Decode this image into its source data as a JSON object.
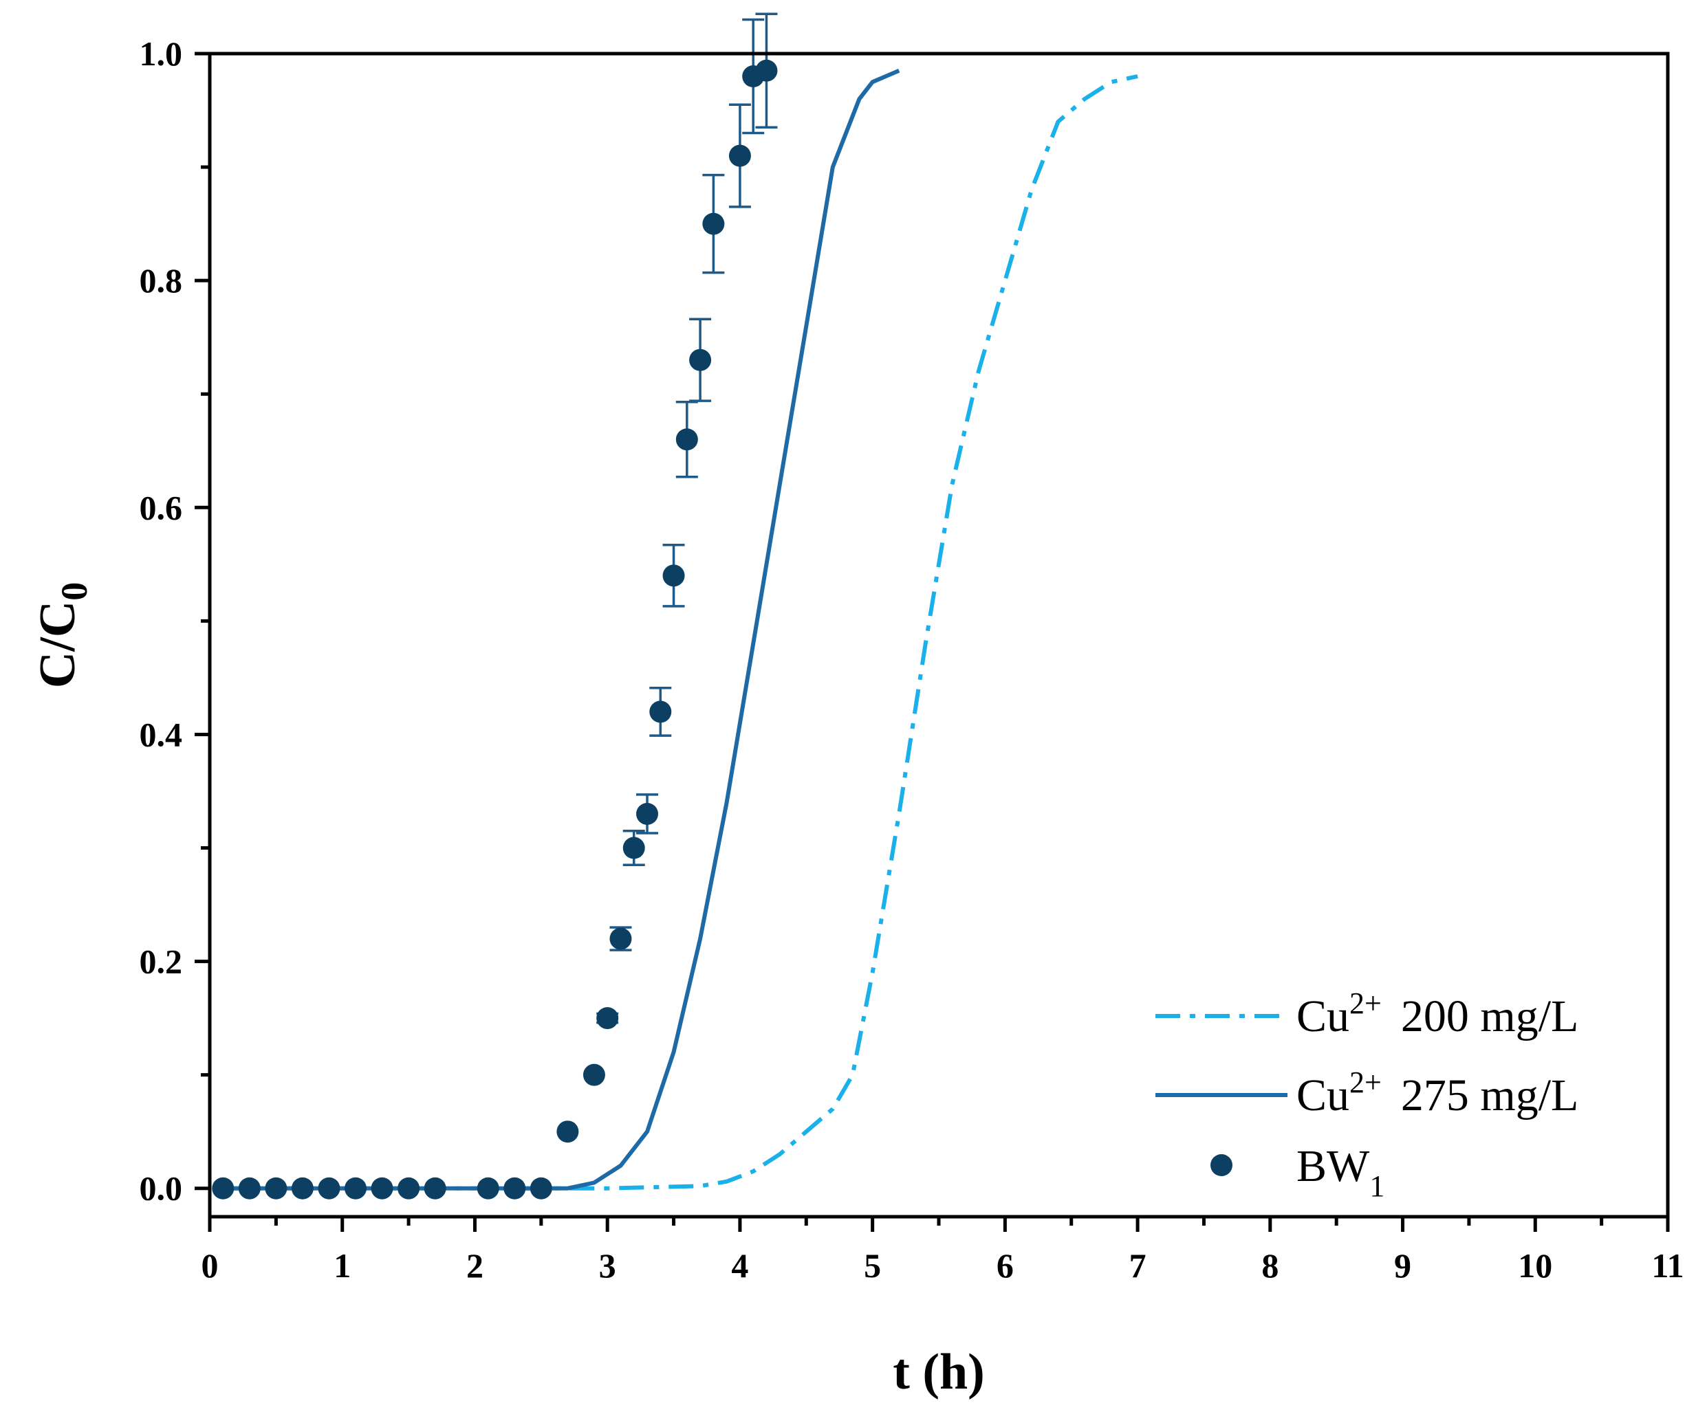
{
  "chart_data": {
    "type": "scatter",
    "title": "",
    "xlabel": "t (h)",
    "ylabel": {
      "base": "C/C",
      "sub": "0"
    },
    "xlim": [
      0,
      11
    ],
    "ylim": [
      0,
      1.0
    ],
    "x_ticks": [
      0,
      1,
      2,
      3,
      4,
      5,
      6,
      7,
      8,
      9,
      10,
      11
    ],
    "x_tick_labels": [
      "0",
      "1",
      "2",
      "3",
      "4",
      "5",
      "6",
      "7",
      "8",
      "9",
      "10",
      "11"
    ],
    "y_ticks": [
      0,
      0.2,
      0.4,
      0.6,
      0.8,
      1.0
    ],
    "y_tick_labels": [
      "0.0",
      "0.2",
      "0.4",
      "0.6",
      "0.8",
      "1.0"
    ],
    "grid": false,
    "legend_position": "bottom-right",
    "series": [
      {
        "name": "Cu2+ 200 mg/L",
        "legend": {
          "ion": "Cu",
          "sup": "2+",
          "conc": "200 mg/L"
        },
        "kind": "line",
        "style": "dash-dot",
        "color": "#1ab0ea",
        "x": [
          0.1,
          2.5,
          3.0,
          3.7,
          3.9,
          4.1,
          4.3,
          4.5,
          4.7,
          4.85,
          5.0,
          5.2,
          5.4,
          5.6,
          5.8,
          6.0,
          6.2,
          6.4,
          6.6,
          6.8,
          7.0
        ],
        "y": [
          0,
          0,
          0,
          0.002,
          0.006,
          0.015,
          0.03,
          0.05,
          0.07,
          0.1,
          0.19,
          0.33,
          0.48,
          0.62,
          0.72,
          0.8,
          0.88,
          0.94,
          0.96,
          0.975,
          0.98
        ]
      },
      {
        "name": "Cu2+ 275 mg/L",
        "legend": {
          "ion": "Cu",
          "sup": "2+",
          "conc": "275 mg/L"
        },
        "kind": "line",
        "style": "solid",
        "color": "#1d6aa6",
        "x": [
          0.1,
          2.5,
          2.7,
          2.9,
          3.1,
          3.3,
          3.5,
          3.7,
          3.9,
          4.1,
          4.3,
          4.5,
          4.7,
          4.9,
          5.0,
          5.1,
          5.2
        ],
        "y": [
          0,
          0,
          0.0,
          0.005,
          0.02,
          0.05,
          0.12,
          0.22,
          0.34,
          0.48,
          0.62,
          0.76,
          0.9,
          0.96,
          0.975,
          0.98,
          0.985
        ]
      },
      {
        "name": "BW1",
        "legend": {
          "label": "BW",
          "sub": "1"
        },
        "kind": "scatter",
        "marker": "circle",
        "color": "#0d3f62",
        "x": [
          0.1,
          0.3,
          0.5,
          0.7,
          0.9,
          1.1,
          1.3,
          1.5,
          1.7,
          2.1,
          2.3,
          2.5,
          2.7,
          2.9,
          3.0,
          3.1,
          3.2,
          3.3,
          3.4,
          3.5,
          3.6,
          3.7,
          3.8,
          4.0,
          4.1,
          4.2
        ],
        "y": [
          0,
          0,
          0,
          0,
          0,
          0,
          0,
          0,
          0,
          0,
          0,
          0,
          0.05,
          0.1,
          0.15,
          0.22,
          0.3,
          0.33,
          0.42,
          0.54,
          0.66,
          0.73,
          0.85,
          0.91,
          0.98,
          0.985
        ],
        "error": [
          0,
          0,
          0,
          0,
          0,
          0,
          0,
          0,
          0,
          0,
          0,
          0,
          0,
          0,
          0.004,
          0.01,
          0.015,
          0.017,
          0.021,
          0.027,
          0.033,
          0.036,
          0.043,
          0.045,
          0.05,
          0.05
        ]
      }
    ]
  }
}
